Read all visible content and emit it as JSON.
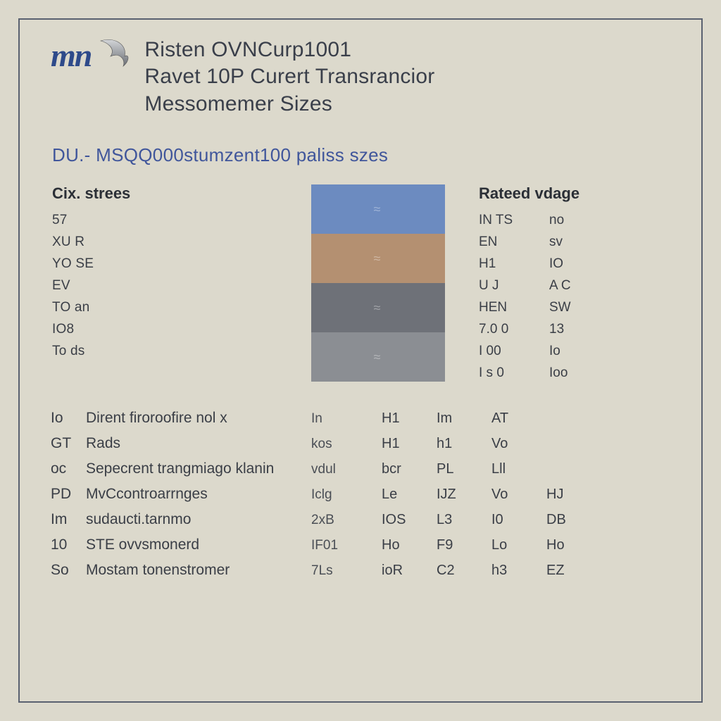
{
  "colors": {
    "page_bg": "#dcd9cc",
    "panel_border": "#5a6170",
    "brand_blue": "#2e4a8a",
    "heading_blue": "#40569b",
    "text_dark": "#3a3f4a",
    "text_body": "#3a3e46",
    "logo_grad_top": "#c9cbce",
    "logo_grad_bot": "#6e7278"
  },
  "typography": {
    "title_fontsize_pt": 22,
    "section_fontsize_pt": 19,
    "table_header_fontsize_pt": 16,
    "body_fontsize_pt": 14
  },
  "logo": {
    "text": "mn"
  },
  "titles": {
    "line1": "Risten OVNCurp1001",
    "line2": "Ravet 10P Curert Transrancior",
    "line3": "Messomemer Sizes"
  },
  "section_heading": "DU.-  MSQQ000stumzent100 paliss  szes",
  "left": {
    "header": "Cix. strees",
    "rows": [
      "57",
      "XU  R",
      "YO  SE",
      "EV",
      "TO  an",
      "IO8",
      "To  ds"
    ]
  },
  "swatches": [
    {
      "label": "≈",
      "color": "#6c8bc0"
    },
    {
      "label": "≈",
      "color": "#b49071"
    },
    {
      "label": "≈",
      "color": "#6e7178"
    },
    {
      "label": "≈",
      "color": "#8b8e93"
    }
  ],
  "right": {
    "header": "Rateed vdage",
    "rows": [
      [
        "IN TS",
        "no"
      ],
      [
        "EN",
        "sv"
      ],
      [
        "H1",
        "IO"
      ],
      [
        "U J",
        "A C"
      ],
      [
        "HEN",
        "SW"
      ],
      [
        "7.0 0",
        "13"
      ],
      [
        "I 00",
        "Io"
      ],
      [
        "I s 0",
        "Ioo"
      ]
    ]
  },
  "spec": {
    "rows": [
      {
        "code": "Io",
        "label": "Dirent firoroofire  nol x",
        "unit": "In",
        "v": [
          "H1",
          "Im",
          "AT"
        ]
      },
      {
        "code": "GT",
        "label": "Rads",
        "unit": "kos",
        "v": [
          "H1",
          "h1",
          "Vo"
        ]
      },
      {
        "code": "oc",
        "label": "Sepecrent trangmiago  klanin",
        "unit": "vdul",
        "v": [
          "bcr",
          "PL",
          "Lll"
        ]
      },
      {
        "code": "PD",
        "label": "MvCcontroarrnges",
        "unit": "Iclg",
        "v": [
          "Le",
          "IJZ",
          "Vo"
        ]
      },
      {
        "code": "Im",
        "label": "sudaucti.tarnmo",
        "unit": "2xB",
        "v": [
          "IOS",
          "L3",
          "I0"
        ]
      },
      {
        "code": "10",
        "label": "STE ovvsmonerd",
        "unit": "IF01",
        "v": [
          "Ho",
          "F9",
          "Lo"
        ]
      },
      {
        "code": "So",
        "label": "Mostam tonenstromer",
        "unit": "7Ls",
        "v": [
          "ioR",
          "C2",
          "h3"
        ]
      }
    ],
    "extra_col": [
      "",
      "",
      "",
      "HJ",
      "DB",
      "Ho",
      "EZ"
    ]
  }
}
